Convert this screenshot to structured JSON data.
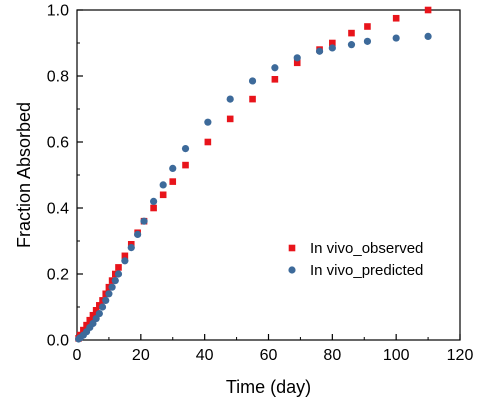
{
  "chart_data": {
    "type": "scatter",
    "title": "",
    "xlabel": "Time (day)",
    "ylabel": "Fraction Absorbed",
    "xlim": [
      0,
      120
    ],
    "ylim": [
      0,
      1.0
    ],
    "xticks": [
      0,
      20,
      40,
      60,
      80,
      100,
      120
    ],
    "yticks": [
      0.0,
      0.2,
      0.4,
      0.6,
      0.8,
      1.0
    ],
    "ytick_labels": [
      "0.0",
      "0.2",
      "0.4",
      "0.6",
      "0.8",
      "1.0"
    ],
    "grid": false,
    "legend_position": "center-right",
    "series": [
      {
        "name": "In vivo_observed",
        "marker": "square",
        "color": "#e8141b",
        "x": [
          0.5,
          1,
          2,
          3,
          4,
          5,
          6,
          7,
          8,
          9,
          10,
          11,
          12,
          13,
          15,
          17,
          19,
          21,
          24,
          27,
          30,
          34,
          41,
          48,
          55,
          62,
          69,
          76,
          80,
          86,
          91,
          100,
          110
        ],
        "y": [
          0.005,
          0.015,
          0.03,
          0.045,
          0.06,
          0.075,
          0.09,
          0.105,
          0.12,
          0.14,
          0.16,
          0.18,
          0.2,
          0.22,
          0.255,
          0.29,
          0.325,
          0.36,
          0.4,
          0.44,
          0.48,
          0.53,
          0.6,
          0.67,
          0.73,
          0.79,
          0.84,
          0.88,
          0.9,
          0.93,
          0.95,
          0.975,
          1.0
        ]
      },
      {
        "name": "In vivo_predicted",
        "marker": "circle",
        "color": "#3d6a9a",
        "x": [
          0.5,
          1,
          2,
          3,
          4,
          5,
          6,
          7,
          8,
          9,
          10,
          11,
          12,
          13,
          15,
          17,
          19,
          21,
          24,
          27,
          30,
          34,
          41,
          48,
          55,
          62,
          69,
          76,
          80,
          86,
          91,
          100,
          110
        ],
        "y": [
          0.003,
          0.007,
          0.015,
          0.025,
          0.038,
          0.05,
          0.065,
          0.08,
          0.1,
          0.12,
          0.14,
          0.16,
          0.18,
          0.2,
          0.24,
          0.28,
          0.32,
          0.36,
          0.42,
          0.47,
          0.52,
          0.58,
          0.66,
          0.73,
          0.785,
          0.825,
          0.855,
          0.875,
          0.885,
          0.895,
          0.905,
          0.915,
          0.92
        ]
      }
    ]
  }
}
